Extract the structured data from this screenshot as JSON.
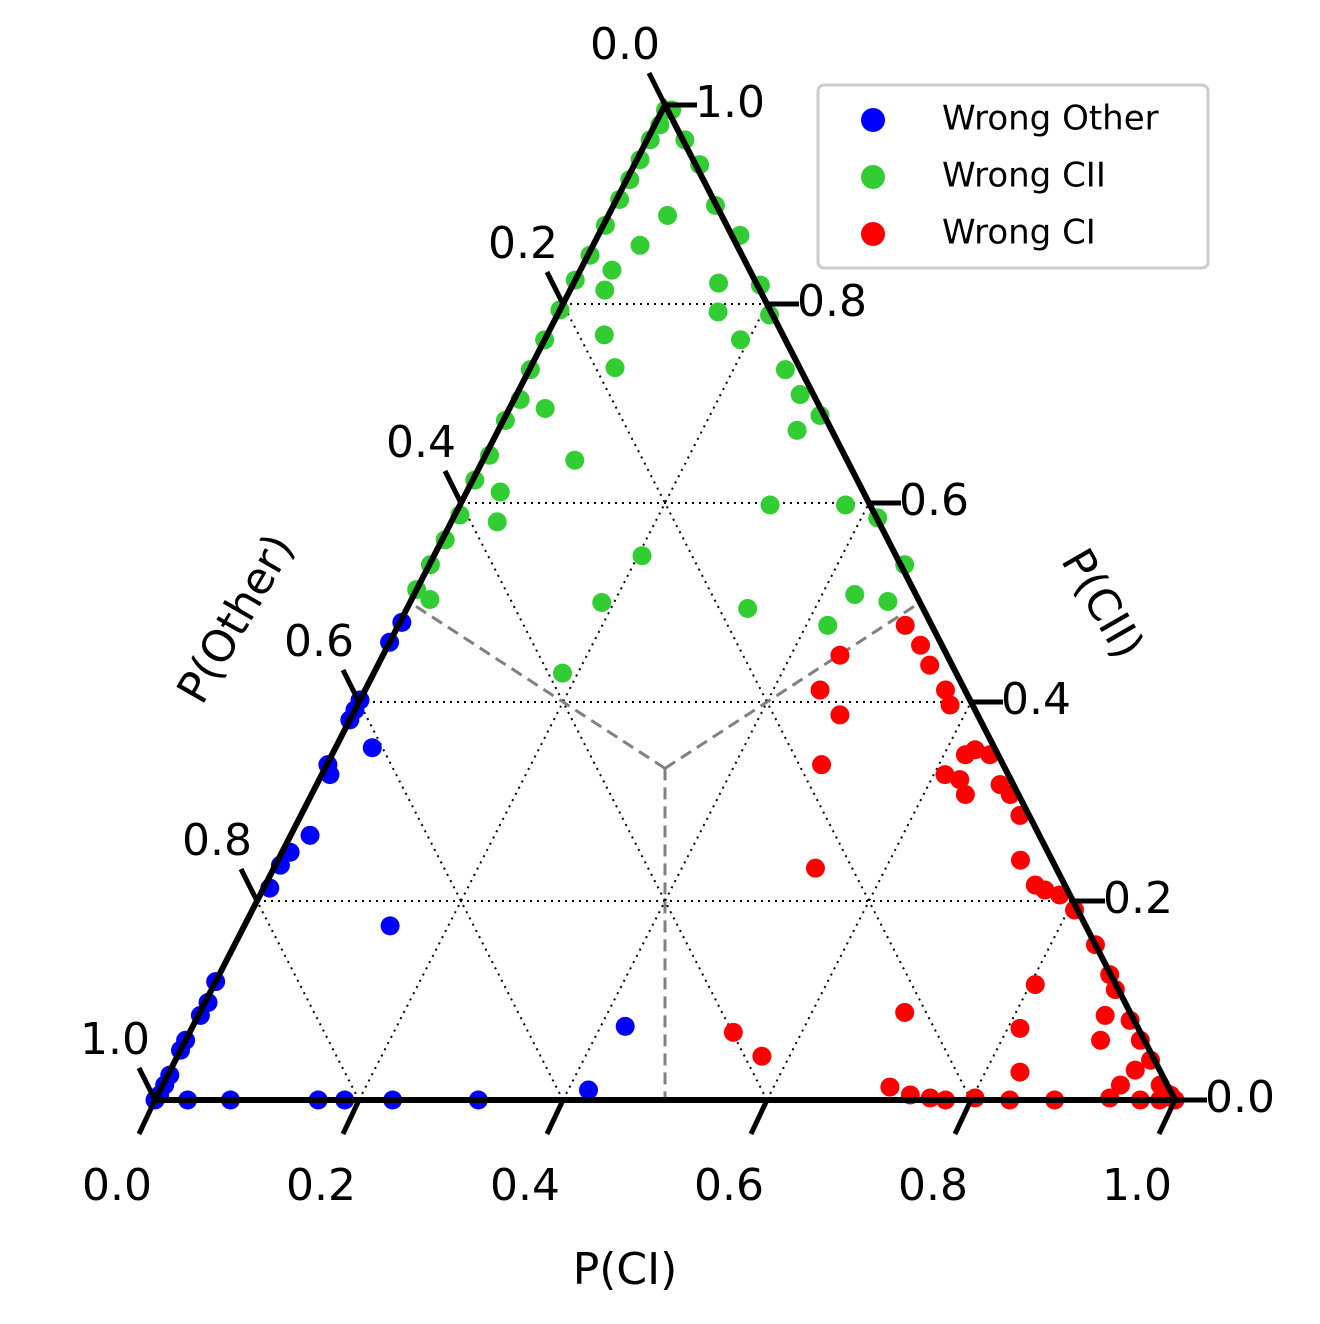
{
  "chart_data": {
    "type": "ternary",
    "x_label": "P(CI)",
    "y_label": "P(CII)",
    "z_label": "P(Other)",
    "xticks": [
      {
        "value": 0,
        "label": "0.0"
      },
      {
        "value": 0.2,
        "label": "0.2"
      },
      {
        "value": 0.4,
        "label": "0.4"
      },
      {
        "value": 0.6,
        "label": "0.6"
      },
      {
        "value": 0.8,
        "label": "0.8"
      },
      {
        "value": 1,
        "label": "1.0"
      }
    ],
    "yticks": [
      {
        "value": 0,
        "label": "0.0"
      },
      {
        "value": 0.2,
        "label": "0.2"
      },
      {
        "value": 0.4,
        "label": "0.4"
      },
      {
        "value": 0.6,
        "label": "0.6"
      },
      {
        "value": 0.8,
        "label": "0.8"
      },
      {
        "value": 1,
        "label": "1.0"
      }
    ],
    "zticks": [
      {
        "value": 0,
        "label": "0.0"
      },
      {
        "value": 0.2,
        "label": "0.2"
      },
      {
        "value": 0.4,
        "label": "0.4"
      },
      {
        "value": 0.6,
        "label": "0.6"
      },
      {
        "value": 0.8,
        "label": "0.8"
      },
      {
        "value": 1,
        "label": "1.0"
      }
    ],
    "grid": true,
    "legend": "upper right",
    "series": [
      {
        "name": "Wrong Other",
        "color": "#0000ff",
        "ci": [
          0,
          0.002,
          0.002,
          0.002,
          0,
          0,
          0.002,
          0.003,
          0,
          0.006,
          0.005,
          0.008,
          0.019,
          0.008,
          0.001,
          0,
          0,
          0,
          0.036,
          0,
          0.002,
          0.143,
          0.424,
          0.42,
          0.317,
          0.233,
          0.186,
          0.16,
          0.074,
          0.032
        ],
        "cii": [
          0,
          0.005,
          0.015,
          0.025,
          0.05,
          0.06,
          0.085,
          0.098,
          0.119,
          0.213,
          0.236,
          0.249,
          0.266,
          0.327,
          0.337,
          0.382,
          0.392,
          0.402,
          0.354,
          0.46,
          0.48,
          0.175,
          0.074,
          0.01,
          0,
          0,
          0,
          0,
          0,
          0
        ]
      },
      {
        "name": "Wrong CII",
        "color": "#32cd32",
        "ci": [
          0.003,
          0.005,
          0.003,
          0.003,
          0.003,
          0.003,
          0.002,
          0.002,
          0,
          0,
          0,
          0.001,
          0.006,
          0.002,
          0.004,
          0.002,
          0.005,
          0.003,
          0.001,
          0,
          0.018,
          0.009,
          0.037,
          0.064,
          0.1,
          0.139,
          0.184,
          0.208,
          0.251,
          0.278,
          0.308,
          0.378,
          0.416,
          0.466,
          0.058,
          0.046,
          0.031,
          0.034,
          0.142,
          0.156,
          0.056,
          0.083,
          0.192,
          0.035,
          0.09,
          0.033,
          0.045,
          0.204,
          0.188,
          0.185,
          0.334,
          0.304,
          0.293,
          0.432,
          0.468,
          0.421
        ],
        "cii": [
          0.995,
          0.98,
          0.965,
          0.945,
          0.925,
          0.905,
          0.879,
          0.849,
          0.824,
          0.794,
          0.764,
          0.734,
          0.704,
          0.683,
          0.648,
          0.623,
          0.588,
          0.563,
          0.538,
          0.513,
          0.503,
          0.995,
          0.965,
          0.94,
          0.899,
          0.869,
          0.819,
          0.789,
          0.734,
          0.709,
          0.688,
          0.598,
          0.585,
          0.538,
          0.889,
          0.859,
          0.834,
          0.814,
          0.821,
          0.792,
          0.769,
          0.736,
          0.764,
          0.695,
          0.643,
          0.611,
          0.581,
          0.547,
          0.5,
          0.429,
          0.494,
          0.598,
          0.673,
          0.508,
          0.501,
          0.477
        ]
      },
      {
        "name": "Wrong CI",
        "color": "#ff0000",
        "ci": [
          1,
          0.993,
          0.978,
          0.956,
          0.936,
          0.916,
          0.886,
          0.873,
          0.844,
          0.806,
          0.784,
          0.767,
          0.755,
          0.728,
          0.705,
          0.685,
          0.67,
          0.645,
          0.628,
          0.621,
          0.628,
          0.611,
          0.641,
          0.581,
          0.569,
          0.541,
          0.522,
          0.497,
          0.478,
          0.446,
          0.448,
          0.485,
          0.531,
          0.691,
          0.812,
          0.805,
          0.897,
          0.889,
          0.946,
          0.939,
          0.985,
          0.966,
          0.935,
          0.882,
          0.838,
          0.803,
          0.775,
          0.759,
          0.738,
          0.714,
          0.834,
          0.573,
          0.533,
          0.986
        ],
        "cii": [
          0,
          0.005,
          0.015,
          0.04,
          0.06,
          0.08,
          0.111,
          0.126,
          0.156,
          0.191,
          0.206,
          0.211,
          0.216,
          0.241,
          0.286,
          0.307,
          0.317,
          0.347,
          0.352,
          0.347,
          0.322,
          0.327,
          0.307,
          0.397,
          0.412,
          0.437,
          0.457,
          0.477,
          0.387,
          0.412,
          0.447,
          0.337,
          0.233,
          0.088,
          0.072,
          0.116,
          0.06,
          0.085,
          0.03,
          0.015,
          0,
          0,
          0.002,
          0,
          0,
          0.002,
          0,
          0.002,
          0.005,
          0.013,
          0.028,
          0.044,
          0.068,
          0.008
        ]
      }
    ]
  }
}
